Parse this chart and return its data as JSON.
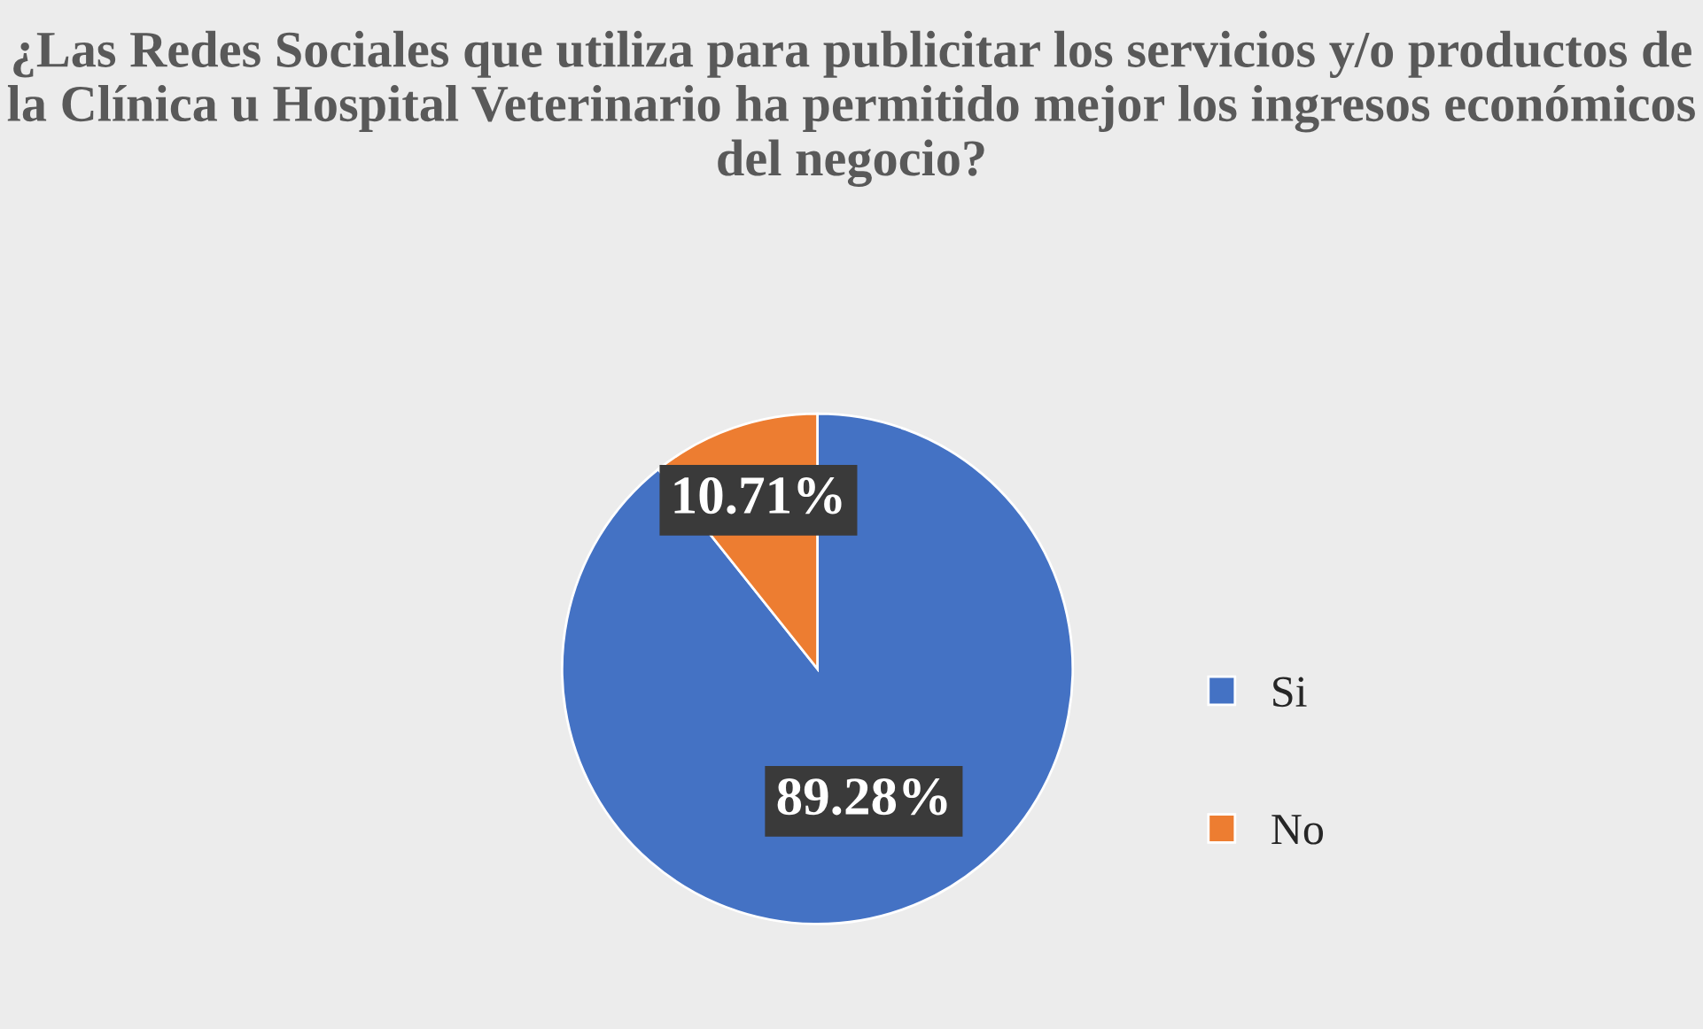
{
  "chart_data": {
    "type": "pie",
    "title": "¿Las Redes Sociales que utiliza para publicitar los servicios y/o productos de la Clínica u Hospital Veterinario ha permitido mejor los ingresos económicos del negocio?",
    "categories": [
      "Si",
      "No"
    ],
    "values": [
      89.28,
      10.71
    ],
    "colors": [
      "#4472c4",
      "#ed7d31"
    ],
    "value_labels": [
      "89.28%",
      "10.71%"
    ],
    "legend": "right"
  }
}
